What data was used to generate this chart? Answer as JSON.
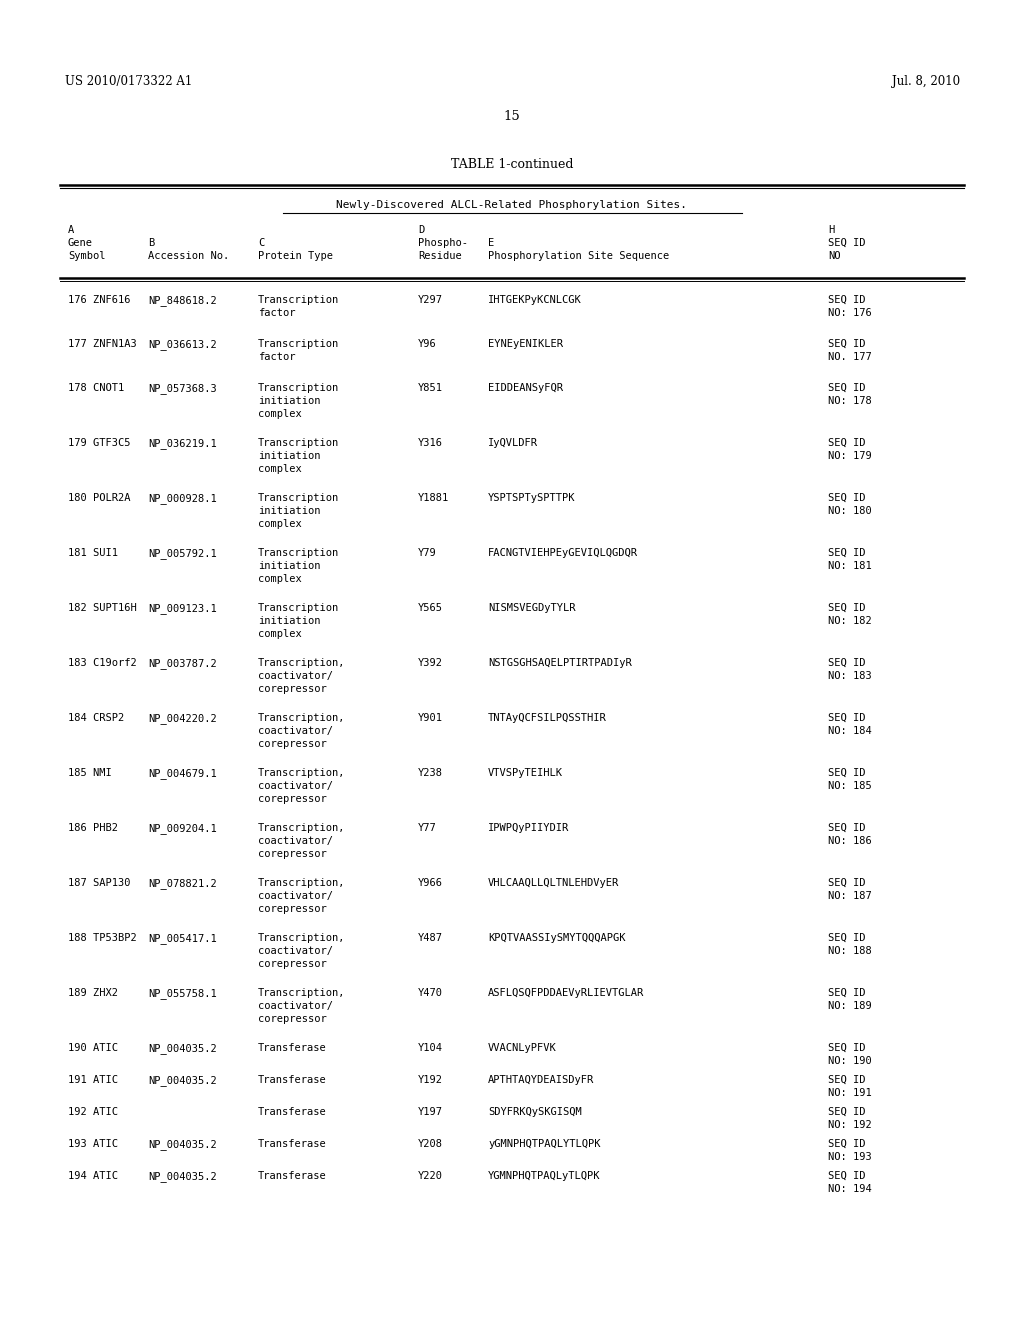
{
  "patent_number": "US 2010/0173322 A1",
  "date": "Jul. 8, 2010",
  "page_number": "15",
  "table_title": "TABLE 1-continued",
  "subtitle": "Newly-Discovered ALCL-Related Phosphorylation Sites.",
  "rows": [
    {
      "num": "176",
      "gene": "ZNF616",
      "acc": "NP_848618.2",
      "ptype": [
        "Transcription",
        "factor"
      ],
      "phospho": "Y297",
      "seq": "IHTGEKPyKCNLCGK",
      "seqid": [
        "SEQ ID",
        "NO: 176"
      ]
    },
    {
      "num": "177",
      "gene": "ZNFN1A3",
      "acc": "NP_036613.2",
      "ptype": [
        "Transcription",
        "factor"
      ],
      "phospho": "Y96",
      "seq": "EYNEyENIKLER",
      "seqid": [
        "SEQ ID",
        "NO. 177"
      ]
    },
    {
      "num": "178",
      "gene": "CNOT1",
      "acc": "NP_057368.3",
      "ptype": [
        "Transcription",
        "initiation",
        "complex"
      ],
      "phospho": "Y851",
      "seq": "EIDDEANSyFQR",
      "seqid": [
        "SEQ ID",
        "NO: 178"
      ]
    },
    {
      "num": "179",
      "gene": "GTF3C5",
      "acc": "NP_036219.1",
      "ptype": [
        "Transcription",
        "initiation",
        "complex"
      ],
      "phospho": "Y316",
      "seq": "IyQVLDFR",
      "seqid": [
        "SEQ ID",
        "NO: 179"
      ]
    },
    {
      "num": "180",
      "gene": "POLR2A",
      "acc": "NP_000928.1",
      "ptype": [
        "Transcription",
        "initiation",
        "complex"
      ],
      "phospho": "Y1881",
      "seq": "YSPTSPTySPTTPK",
      "seqid": [
        "SEQ ID",
        "NO: 180"
      ]
    },
    {
      "num": "181",
      "gene": "SUI1",
      "acc": "NP_005792.1",
      "ptype": [
        "Transcription",
        "initiation",
        "complex"
      ],
      "phospho": "Y79",
      "seq": "FACNGTVIEHPEyGEVIQLQGDQR",
      "seqid": [
        "SEQ ID",
        "NO: 181"
      ]
    },
    {
      "num": "182",
      "gene": "SUPT16H",
      "acc": "NP_009123.1",
      "ptype": [
        "Transcription",
        "initiation",
        "complex"
      ],
      "phospho": "Y565",
      "seq": "NISMSVEGDyTYLR",
      "seqid": [
        "SEQ ID",
        "NO: 182"
      ]
    },
    {
      "num": "183",
      "gene": "C19orf2",
      "acc": "NP_003787.2",
      "ptype": [
        "Transcription,",
        "coactivator/",
        "corepressor"
      ],
      "phospho": "Y392",
      "seq": "NSTGSGHSAQELPTIRTPADIyR",
      "seqid": [
        "SEQ ID",
        "NO: 183"
      ]
    },
    {
      "num": "184",
      "gene": "CRSP2",
      "acc": "NP_004220.2",
      "ptype": [
        "Transcription,",
        "coactivator/",
        "corepressor"
      ],
      "phospho": "Y901",
      "seq": "TNTAyQCFSILPQSSTHIR",
      "seqid": [
        "SEQ ID",
        "NO: 184"
      ]
    },
    {
      "num": "185",
      "gene": "NMI",
      "acc": "NP_004679.1",
      "ptype": [
        "Transcription,",
        "coactivator/",
        "corepressor"
      ],
      "phospho": "Y238",
      "seq": "VTVSPyTEIHLK",
      "seqid": [
        "SEQ ID",
        "NO: 185"
      ]
    },
    {
      "num": "186",
      "gene": "PHB2",
      "acc": "NP_009204.1",
      "ptype": [
        "Transcription,",
        "coactivator/",
        "corepressor"
      ],
      "phospho": "Y77",
      "seq": "IPWPQyPIIYDIR",
      "seqid": [
        "SEQ ID",
        "NO: 186"
      ]
    },
    {
      "num": "187",
      "gene": "SAP130",
      "acc": "NP_078821.2",
      "ptype": [
        "Transcription,",
        "coactivator/",
        "corepressor"
      ],
      "phospho": "Y966",
      "seq": "VHLCAAQLLQLTNLEHDVyER",
      "seqid": [
        "SEQ ID",
        "NO: 187"
      ]
    },
    {
      "num": "188",
      "gene": "TP53BP2",
      "acc": "NP_005417.1",
      "ptype": [
        "Transcription,",
        "coactivator/",
        "corepressor"
      ],
      "phospho": "Y487",
      "seq": "KPQTVAASSIySMYTQQQAPGK",
      "seqid": [
        "SEQ ID",
        "NO: 188"
      ]
    },
    {
      "num": "189",
      "gene": "ZHX2",
      "acc": "NP_055758.1",
      "ptype": [
        "Transcription,",
        "coactivator/",
        "corepressor"
      ],
      "phospho": "Y470",
      "seq": "ASFLQSQFPDDAEVyRLIEVTGLAR",
      "seqid": [
        "SEQ ID",
        "NO: 189"
      ]
    },
    {
      "num": "190",
      "gene": "ATIC",
      "acc": "NP_004035.2",
      "ptype": [
        "Transferase"
      ],
      "phospho": "Y104",
      "seq": "VVACNLyPFVK",
      "seqid": [
        "SEQ ID",
        "NO: 190"
      ]
    },
    {
      "num": "191",
      "gene": "ATIC",
      "acc": "NP_004035.2",
      "ptype": [
        "Transferase"
      ],
      "phospho": "Y192",
      "seq": "APTHTAQYDEAISDyFR",
      "seqid": [
        "SEQ ID",
        "NO: 191"
      ]
    },
    {
      "num": "192",
      "gene": "ATIC",
      "acc": "",
      "ptype": [
        "Transferase"
      ],
      "phospho": "Y197",
      "seq": "SDYFRKQySKGISQM",
      "seqid": [
        "SEQ ID",
        "NO: 192"
      ]
    },
    {
      "num": "193",
      "gene": "ATIC",
      "acc": "NP_004035.2",
      "ptype": [
        "Transferase"
      ],
      "phospho": "Y208",
      "seq": "yGMNPHQTPAQLYTLQPK",
      "seqid": [
        "SEQ ID",
        "NO: 193"
      ]
    },
    {
      "num": "194",
      "gene": "ATIC",
      "acc": "NP_004035.2",
      "ptype": [
        "Transferase"
      ],
      "phospho": "Y220",
      "seq": "YGMNPHQTPAQLyTLQPK",
      "seqid": [
        "SEQ ID",
        "NO: 194"
      ]
    }
  ],
  "bg_color": "#ffffff",
  "text_color": "#000000"
}
